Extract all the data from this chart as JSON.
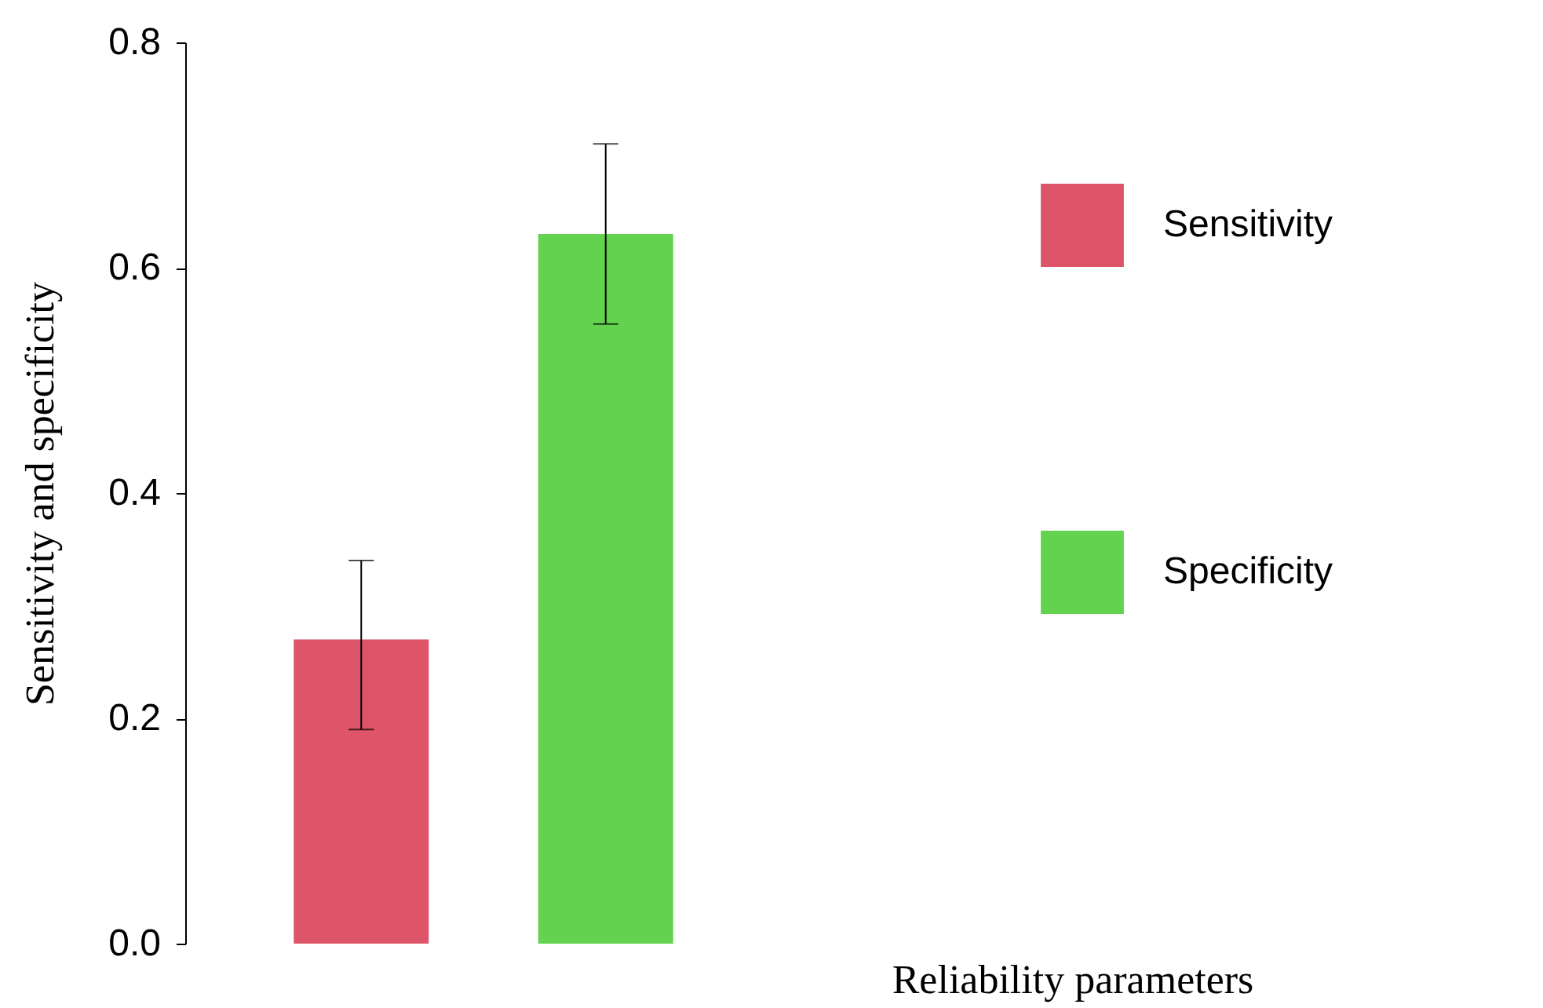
{
  "chart_data": {
    "type": "bar",
    "xlabel": "Reliability parameters",
    "ylabel": "Sensitivity and specificity",
    "categories": [
      null,
      null
    ],
    "series": [
      {
        "name": "Sensitivity",
        "color": "#de5469",
        "values": [
          0.27,
          null
        ],
        "errors": [
          [
            0.19,
            0.34
          ],
          null
        ]
      },
      {
        "name": "Specificity",
        "color": "#62d24f",
        "values": [
          null,
          0.63
        ],
        "errors": [
          null,
          [
            0.55,
            0.71
          ]
        ]
      }
    ],
    "ylim": [
      0,
      0.8
    ],
    "yticks": [
      {
        "value": 0,
        "label": "0.0"
      },
      0.2,
      0.4,
      0.6,
      0.8
    ],
    "stacked": true,
    "grid": false,
    "legend": "right"
  }
}
